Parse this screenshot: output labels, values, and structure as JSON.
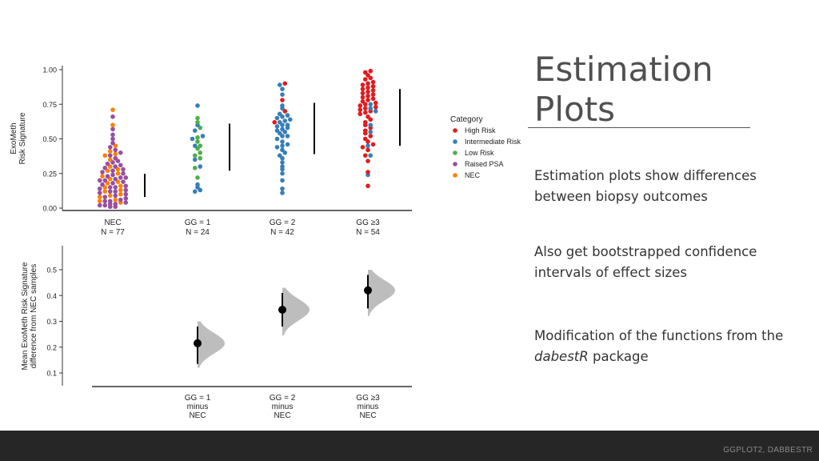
{
  "slide": {
    "title": "Estimation Plots",
    "bullets": [
      {
        "pre": "Estimation plots show differences between biopsy outcomes",
        "em": "",
        "post": ""
      },
      {
        "pre": "Also get bootstrapped confidence intervals of effect sizes",
        "em": "",
        "post": ""
      },
      {
        "pre": "Modification of the functions from the ",
        "em": "dabestR",
        "post": " package"
      }
    ],
    "footer": "GGPLOT2, DABBESTR"
  },
  "colors": {
    "High Risk": "#E41A1C",
    "Intermediate Risk": "#377EB8",
    "Low Risk": "#4DAF4A",
    "Raised PSA": "#984EA3",
    "NEC": "#FF7F00",
    "halfviolin": "#bdbdbd"
  },
  "chart_data": [
    {
      "type": "scatter",
      "subtype": "swarm",
      "ylabel": "ExoMeth\nRisk Signature",
      "ylim": [
        0,
        1
      ],
      "yticks": [
        "0.00",
        "0.25",
        "0.50",
        "0.75",
        "1.00"
      ],
      "yticks_values": [
        0,
        0.25,
        0.5,
        0.75,
        1.0
      ],
      "legend": {
        "title": "Category",
        "placement": "right",
        "entries": [
          "High Risk",
          "Intermediate Risk",
          "Low Risk",
          "Raised PSA",
          "NEC"
        ]
      },
      "groups": [
        {
          "label": "NEC",
          "n_label": "N = 77",
          "mean_sd": [
            0.15,
            0.23,
            0.08
          ],
          "points": [
            {
              "category": "NEC",
              "values": [
                0.71,
                0.6,
                0.45,
                0.41,
                0.39,
                0.38,
                0.35,
                0.3,
                0.28,
                0.27,
                0.25,
                0.23,
                0.21,
                0.19,
                0.18,
                0.16,
                0.15,
                0.13,
                0.12,
                0.1,
                0.09,
                0.08,
                0.06,
                0.05,
                0.04
              ]
            },
            {
              "category": "Raised PSA",
              "values": [
                0.66,
                0.57,
                0.53,
                0.5,
                0.47,
                0.44,
                0.42,
                0.4,
                0.38,
                0.36,
                0.34,
                0.33,
                0.32,
                0.31,
                0.3,
                0.29,
                0.28,
                0.27,
                0.26,
                0.25,
                0.24,
                0.23,
                0.22,
                0.21,
                0.2,
                0.2,
                0.19,
                0.18,
                0.17,
                0.16,
                0.15,
                0.15,
                0.14,
                0.13,
                0.12,
                0.11,
                0.1,
                0.09,
                0.08,
                0.07,
                0.06,
                0.05,
                0.05,
                0.04,
                0.03,
                0.03,
                0.02,
                0.02,
                0.01,
                0.01,
                0.12,
                0.22
              ]
            }
          ]
        },
        {
          "label": "GG = 1",
          "n_label": "N = 24",
          "mean_sd": [
            0.27,
            0.43,
            0.61
          ],
          "points": [
            {
              "category": "Intermediate Risk",
              "values": [
                0.74,
                0.6,
                0.56,
                0.5,
                0.52,
                0.45,
                0.35,
                0.3,
                0.17,
                0.15,
                0.13,
                0.12
              ]
            },
            {
              "category": "Low Risk",
              "values": [
                0.65,
                0.62,
                0.58,
                0.51,
                0.48,
                0.45,
                0.43,
                0.4,
                0.38,
                0.36,
                0.29,
                0.22
              ]
            }
          ]
        },
        {
          "label": "GG = 2",
          "n_label": "N = 42",
          "mean_sd": [
            0.39,
            0.57,
            0.76
          ],
          "points": [
            {
              "category": "High Risk",
              "values": [
                0.9,
                0.78,
                0.7,
                0.62
              ]
            },
            {
              "category": "Intermediate Risk",
              "values": [
                0.89,
                0.86,
                0.82,
                0.74,
                0.72,
                0.68,
                0.67,
                0.66,
                0.65,
                0.64,
                0.63,
                0.62,
                0.6,
                0.6,
                0.59,
                0.58,
                0.57,
                0.56,
                0.55,
                0.54,
                0.52,
                0.5,
                0.48,
                0.46,
                0.45,
                0.44,
                0.42,
                0.4,
                0.38,
                0.36,
                0.33,
                0.3,
                0.28,
                0.25,
                0.2,
                0.14,
                0.11,
                0.52
              ]
            }
          ]
        },
        {
          "label": "GG ≥3",
          "n_label": "N = 54",
          "mean_sd": [
            0.45,
            0.65,
            0.86
          ],
          "points": [
            {
              "category": "High Risk",
              "values": [
                0.99,
                0.98,
                0.96,
                0.94,
                0.93,
                0.91,
                0.9,
                0.89,
                0.88,
                0.87,
                0.86,
                0.85,
                0.84,
                0.83,
                0.82,
                0.81,
                0.8,
                0.79,
                0.78,
                0.77,
                0.76,
                0.75,
                0.74,
                0.73,
                0.72,
                0.71,
                0.7,
                0.69,
                0.68,
                0.66,
                0.64,
                0.62,
                0.6,
                0.58,
                0.56,
                0.54,
                0.52,
                0.5,
                0.48,
                0.46,
                0.44,
                0.42,
                0.38,
                0.34,
                0.26,
                0.16
              ]
            },
            {
              "category": "Intermediate Risk",
              "values": [
                0.75,
                0.72,
                0.7,
                0.6,
                0.55,
                0.45,
                0.38,
                0.24
              ]
            }
          ]
        }
      ]
    },
    {
      "type": "scatter",
      "subtype": "effect_size_halfviolin",
      "ylabel": "Mean ExoMeth Risk Signature\ndifference from NEC samples",
      "ylim": [
        0.05,
        0.6
      ],
      "yticks": [
        "0.1",
        "0.2",
        "0.3",
        "0.4",
        "0.5"
      ],
      "yticks_values": [
        0.1,
        0.2,
        0.3,
        0.4,
        0.5
      ],
      "categories": [
        "GG = 1\nminus\nNEC",
        "GG = 2\nminus\nNEC",
        "GG ≥3\nminus\nNEC"
      ],
      "estimate": [
        0.215,
        0.345,
        0.42
      ],
      "ci_low": [
        0.135,
        0.28,
        0.35
      ],
      "ci_high": [
        0.28,
        0.41,
        0.48
      ],
      "dist_low": [
        0.12,
        0.245,
        0.32
      ],
      "dist_high": [
        0.3,
        0.43,
        0.5
      ]
    }
  ]
}
